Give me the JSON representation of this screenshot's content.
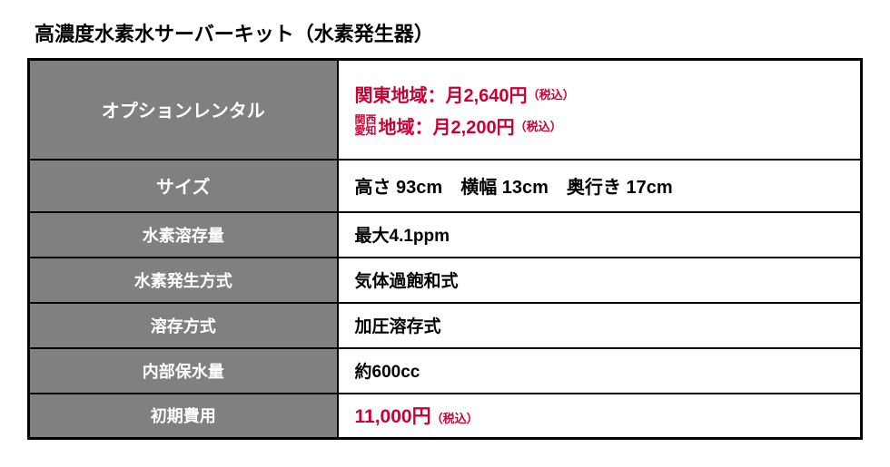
{
  "title": "高濃度水素水サーバーキット（水素発生器）",
  "labels": {
    "rental": "オプションレンタル",
    "size": "サイズ",
    "dissolved": "水素溶存量",
    "method": "水素発生方式",
    "dissolve_method": "溶存方式",
    "capacity": "内部保水量",
    "initial": "初期費用"
  },
  "rental": {
    "kanto_prefix": "関東地域：月",
    "kanto_price": "2,640円",
    "kansai_stack_top": "関西",
    "kansai_stack_bottom": "愛知",
    "kansai_suffix": "地域：月",
    "kansai_price": "2,200円",
    "tax": "（税込）"
  },
  "size_value": "高さ 93cm　横幅 13cm　奥行き 17cm",
  "dissolved_value": "最大4.1ppm",
  "method_value": "気体過飽和式",
  "dissolve_method_value": "加圧溶存式",
  "capacity_value": "約600cc",
  "initial_value": "11,000円",
  "initial_tax": "（税込）",
  "colors": {
    "header_bg": "#808080",
    "header_text": "#ffffff",
    "border": "#000000",
    "text": "#000000",
    "accent": "#cc0033"
  },
  "font_sizes": {
    "title": 22,
    "label_big": 20,
    "label_sm": 18,
    "value": 19,
    "tax": 13
  }
}
